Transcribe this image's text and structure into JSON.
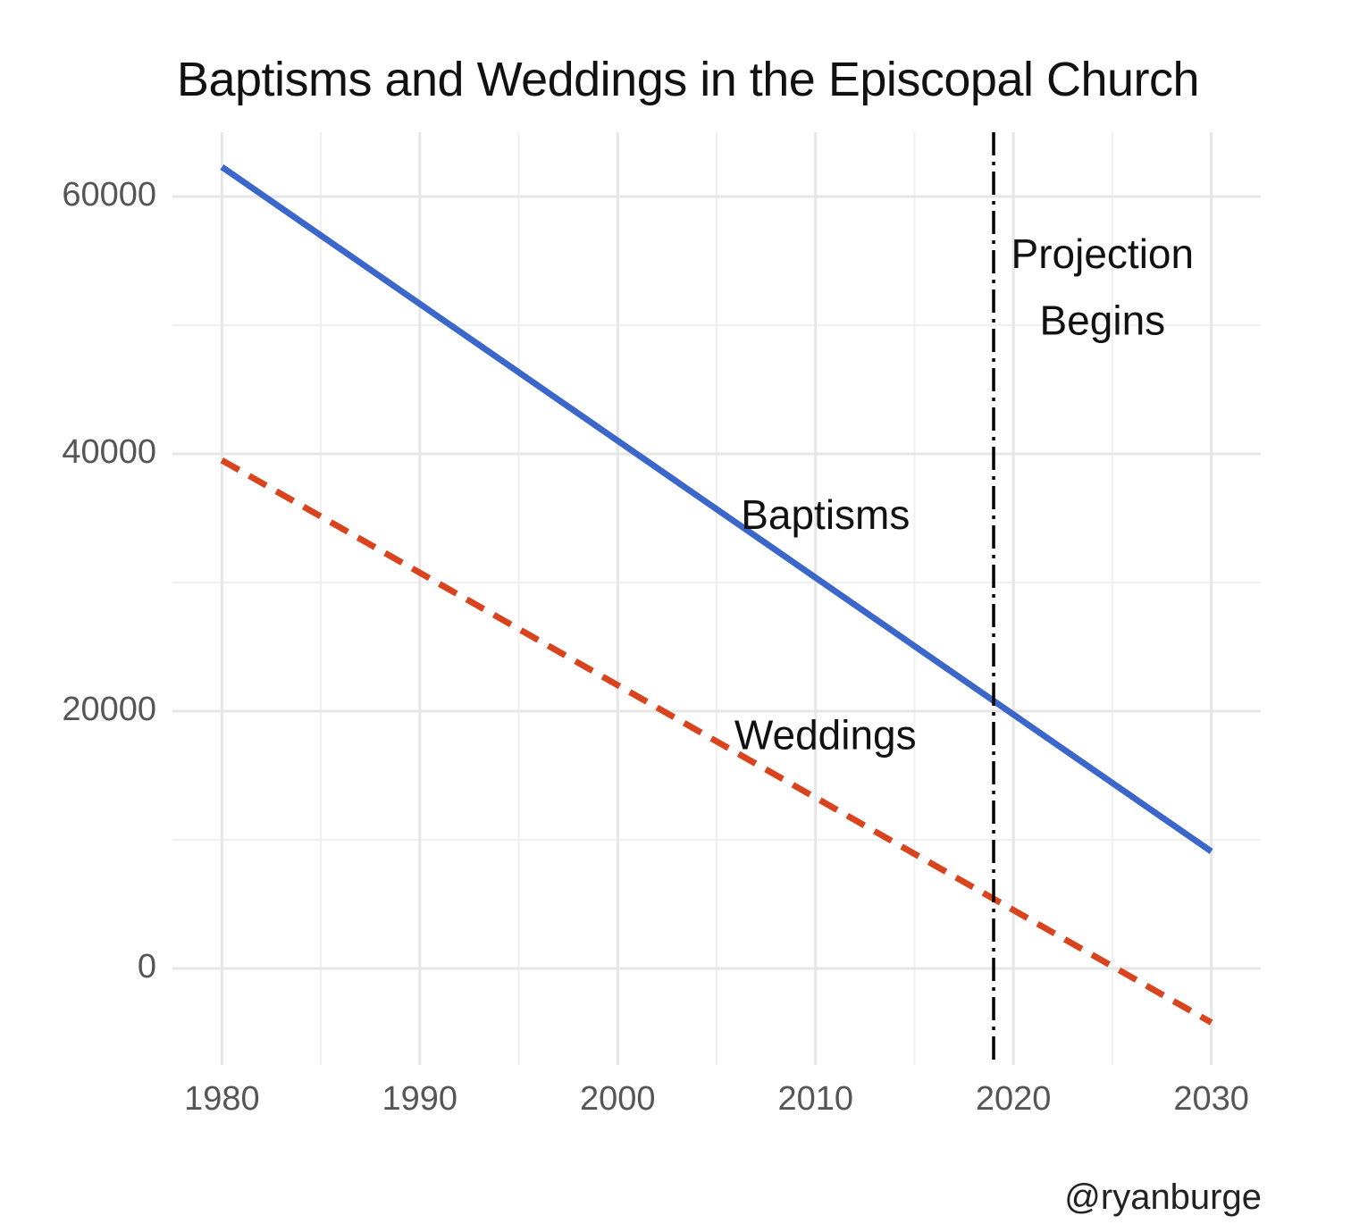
{
  "chart_data": {
    "type": "line",
    "title": "Baptisms and Weddings in the Episcopal Church",
    "xlabel": "",
    "ylabel": "",
    "xlim": [
      1977.5,
      2032.5
    ],
    "ylim": [
      -7500,
      65000
    ],
    "x_ticks": [
      1980,
      1990,
      2000,
      2010,
      2020,
      2030
    ],
    "y_ticks": [
      0,
      20000,
      40000,
      60000
    ],
    "grid": true,
    "legend": "none",
    "series": [
      {
        "label": "Baptisms",
        "x": [
          1980,
          2030
        ],
        "y": [
          62300,
          9100
        ],
        "color": "#3a67c9",
        "style": "solid"
      },
      {
        "label": "Weddings",
        "x": [
          1980,
          2030
        ],
        "y": [
          39500,
          -4200
        ],
        "color": "#d9431e",
        "style": "dashed"
      }
    ],
    "annotations": [
      {
        "text": "Baptisms",
        "x": 2010.5,
        "y": 35000
      },
      {
        "text": "Weddings",
        "x": 2010.5,
        "y": 17900
      },
      {
        "text": "Projection",
        "x": 2024.5,
        "y": 55300
      },
      {
        "text": "Begins",
        "x": 2024.5,
        "y": 50100
      }
    ],
    "vline": {
      "x": 2019,
      "style": "dotdash",
      "color": "#000000"
    },
    "caption": "@ryanburge"
  }
}
